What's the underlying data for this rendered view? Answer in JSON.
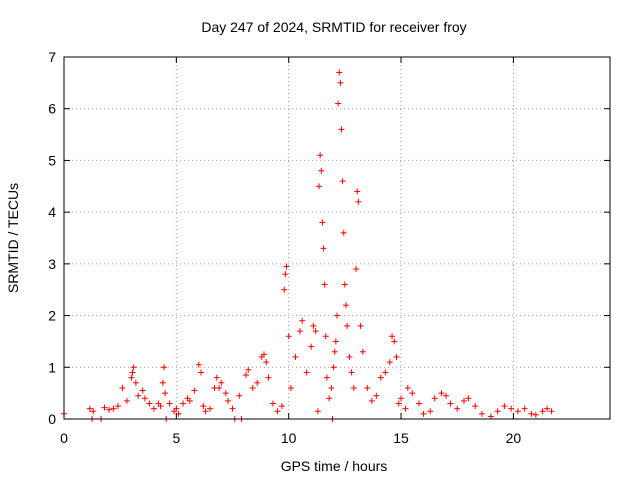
{
  "chart_data": {
    "type": "scatter",
    "title": "Day 247 of 2024, SRMTID for receiver froy",
    "xlabel": "GPS time / hours",
    "ylabel": "SRMTID / TECUs",
    "xlim": [
      0,
      24.3
    ],
    "ylim": [
      0,
      7
    ],
    "xticks": [
      0,
      5,
      10,
      15,
      20
    ],
    "yticks": [
      0,
      1,
      2,
      3,
      4,
      5,
      6,
      7
    ],
    "grid": true,
    "marker": "+",
    "color": "#ff0000",
    "series": [
      {
        "name": "SRMTID",
        "points": [
          [
            0.0,
            0.1
          ],
          [
            1.15,
            0.2
          ],
          [
            1.3,
            0.15
          ],
          [
            1.25,
            0.0
          ],
          [
            1.65,
            0.0
          ],
          [
            1.8,
            0.22
          ],
          [
            2.0,
            0.18
          ],
          [
            2.2,
            0.2
          ],
          [
            2.4,
            0.25
          ],
          [
            2.6,
            0.6
          ],
          [
            2.8,
            0.35
          ],
          [
            3.0,
            0.8
          ],
          [
            3.05,
            0.9
          ],
          [
            3.1,
            1.0
          ],
          [
            3.2,
            0.7
          ],
          [
            3.3,
            0.45
          ],
          [
            3.5,
            0.55
          ],
          [
            3.6,
            0.4
          ],
          [
            3.8,
            0.3
          ],
          [
            4.0,
            0.2
          ],
          [
            4.2,
            0.3
          ],
          [
            4.3,
            0.25
          ],
          [
            4.4,
            0.7
          ],
          [
            4.45,
            1.0
          ],
          [
            4.5,
            0.5
          ],
          [
            4.55,
            0.0
          ],
          [
            4.7,
            0.3
          ],
          [
            4.9,
            0.15
          ],
          [
            5.0,
            0.2
          ],
          [
            5.1,
            0.1
          ],
          [
            5.3,
            0.3
          ],
          [
            5.5,
            0.4
          ],
          [
            5.6,
            0.35
          ],
          [
            5.8,
            0.55
          ],
          [
            6.0,
            1.05
          ],
          [
            6.1,
            0.9
          ],
          [
            6.2,
            0.25
          ],
          [
            6.3,
            0.15
          ],
          [
            6.5,
            0.2
          ],
          [
            6.7,
            0.6
          ],
          [
            6.8,
            0.8
          ],
          [
            6.9,
            0.6
          ],
          [
            7.0,
            0.7
          ],
          [
            7.2,
            0.5
          ],
          [
            7.3,
            0.35
          ],
          [
            7.5,
            0.2
          ],
          [
            7.8,
            0.45
          ],
          [
            7.6,
            0.0
          ],
          [
            7.9,
            0.0
          ],
          [
            8.1,
            0.85
          ],
          [
            8.2,
            0.95
          ],
          [
            8.4,
            0.6
          ],
          [
            8.6,
            0.7
          ],
          [
            8.8,
            1.2
          ],
          [
            8.9,
            1.25
          ],
          [
            9.0,
            1.1
          ],
          [
            9.1,
            0.8
          ],
          [
            9.3,
            0.3
          ],
          [
            9.5,
            0.15
          ],
          [
            9.7,
            0.25
          ],
          [
            9.8,
            2.5
          ],
          [
            9.85,
            2.8
          ],
          [
            9.9,
            2.95
          ],
          [
            10.0,
            1.6
          ],
          [
            10.1,
            0.6
          ],
          [
            10.3,
            1.2
          ],
          [
            10.5,
            1.7
          ],
          [
            10.6,
            1.9
          ],
          [
            10.8,
            0.9
          ],
          [
            11.0,
            1.4
          ],
          [
            11.1,
            1.8
          ],
          [
            11.2,
            1.7
          ],
          [
            11.3,
            0.15
          ],
          [
            11.35,
            4.5
          ],
          [
            11.4,
            5.1
          ],
          [
            11.45,
            4.8
          ],
          [
            11.5,
            3.8
          ],
          [
            11.55,
            3.3
          ],
          [
            11.6,
            2.6
          ],
          [
            11.65,
            1.6
          ],
          [
            11.7,
            0.8
          ],
          [
            11.8,
            0.4
          ],
          [
            11.9,
            0.6
          ],
          [
            11.95,
            0.0
          ],
          [
            12.0,
            1.0
          ],
          [
            12.05,
            1.3
          ],
          [
            12.1,
            1.5
          ],
          [
            12.15,
            2.0
          ],
          [
            12.2,
            6.1
          ],
          [
            12.25,
            6.7
          ],
          [
            12.3,
            6.5
          ],
          [
            12.35,
            5.6
          ],
          [
            12.4,
            4.6
          ],
          [
            12.45,
            3.6
          ],
          [
            12.5,
            2.6
          ],
          [
            12.55,
            2.2
          ],
          [
            12.6,
            1.8
          ],
          [
            12.7,
            1.2
          ],
          [
            12.8,
            0.9
          ],
          [
            12.9,
            0.6
          ],
          [
            13.0,
            2.9
          ],
          [
            13.05,
            4.4
          ],
          [
            13.1,
            4.2
          ],
          [
            13.2,
            1.8
          ],
          [
            13.3,
            1.3
          ],
          [
            13.5,
            0.6
          ],
          [
            13.7,
            0.35
          ],
          [
            13.9,
            0.45
          ],
          [
            14.1,
            0.8
          ],
          [
            14.3,
            0.9
          ],
          [
            14.5,
            1.1
          ],
          [
            14.6,
            1.6
          ],
          [
            14.7,
            1.5
          ],
          [
            14.8,
            1.2
          ],
          [
            14.9,
            0.3
          ],
          [
            15.0,
            0.4
          ],
          [
            15.2,
            0.2
          ],
          [
            15.3,
            0.6
          ],
          [
            15.5,
            0.5
          ],
          [
            15.8,
            0.3
          ],
          [
            16.0,
            0.1
          ],
          [
            16.3,
            0.15
          ],
          [
            16.5,
            0.4
          ],
          [
            16.8,
            0.5
          ],
          [
            17.0,
            0.45
          ],
          [
            17.2,
            0.3
          ],
          [
            17.5,
            0.2
          ],
          [
            17.8,
            0.35
          ],
          [
            18.0,
            0.4
          ],
          [
            18.3,
            0.25
          ],
          [
            18.6,
            0.1
          ],
          [
            19.0,
            0.05
          ],
          [
            19.3,
            0.15
          ],
          [
            19.6,
            0.25
          ],
          [
            19.9,
            0.2
          ],
          [
            20.2,
            0.15
          ],
          [
            20.5,
            0.2
          ],
          [
            20.8,
            0.1
          ],
          [
            21.0,
            0.08
          ],
          [
            21.3,
            0.15
          ],
          [
            21.5,
            0.2
          ],
          [
            21.7,
            0.15
          ]
        ]
      }
    ]
  }
}
